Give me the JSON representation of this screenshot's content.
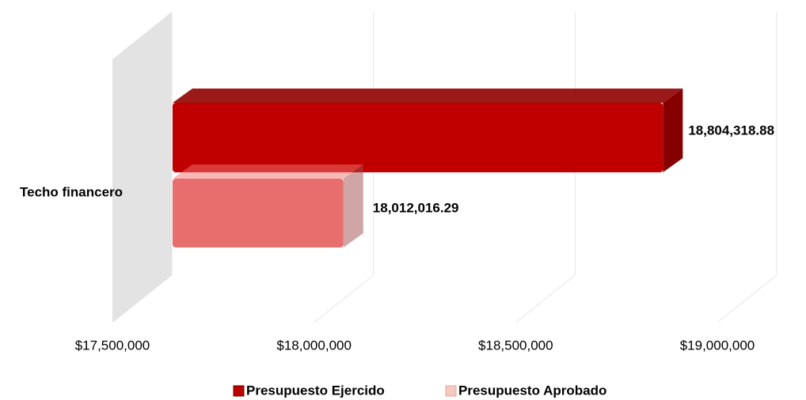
{
  "chart_data": {
    "type": "bar3d",
    "orientation": "horizontal",
    "categories": [
      "Techo financero"
    ],
    "series": [
      {
        "name": "Presupuesto Ejercido",
        "color": "#c00000",
        "values": [
          18804318.88
        ],
        "value_labels": [
          "18,804,318.88"
        ]
      },
      {
        "name": "Presupuesto Aprobado",
        "color": "#e86d6d",
        "values": [
          18012016.29
        ],
        "value_labels": [
          "18,012,016.29"
        ]
      }
    ],
    "xlim": [
      17500000,
      19000000
    ],
    "xticks": [
      {
        "value": 17500000,
        "label": "$17,500,000"
      },
      {
        "value": 18000000,
        "label": "$18,000,000"
      },
      {
        "value": 18500000,
        "label": "$18,500,000"
      },
      {
        "value": 19000000,
        "label": "$19,000,000"
      }
    ],
    "grid": true,
    "legend": "bottom"
  }
}
